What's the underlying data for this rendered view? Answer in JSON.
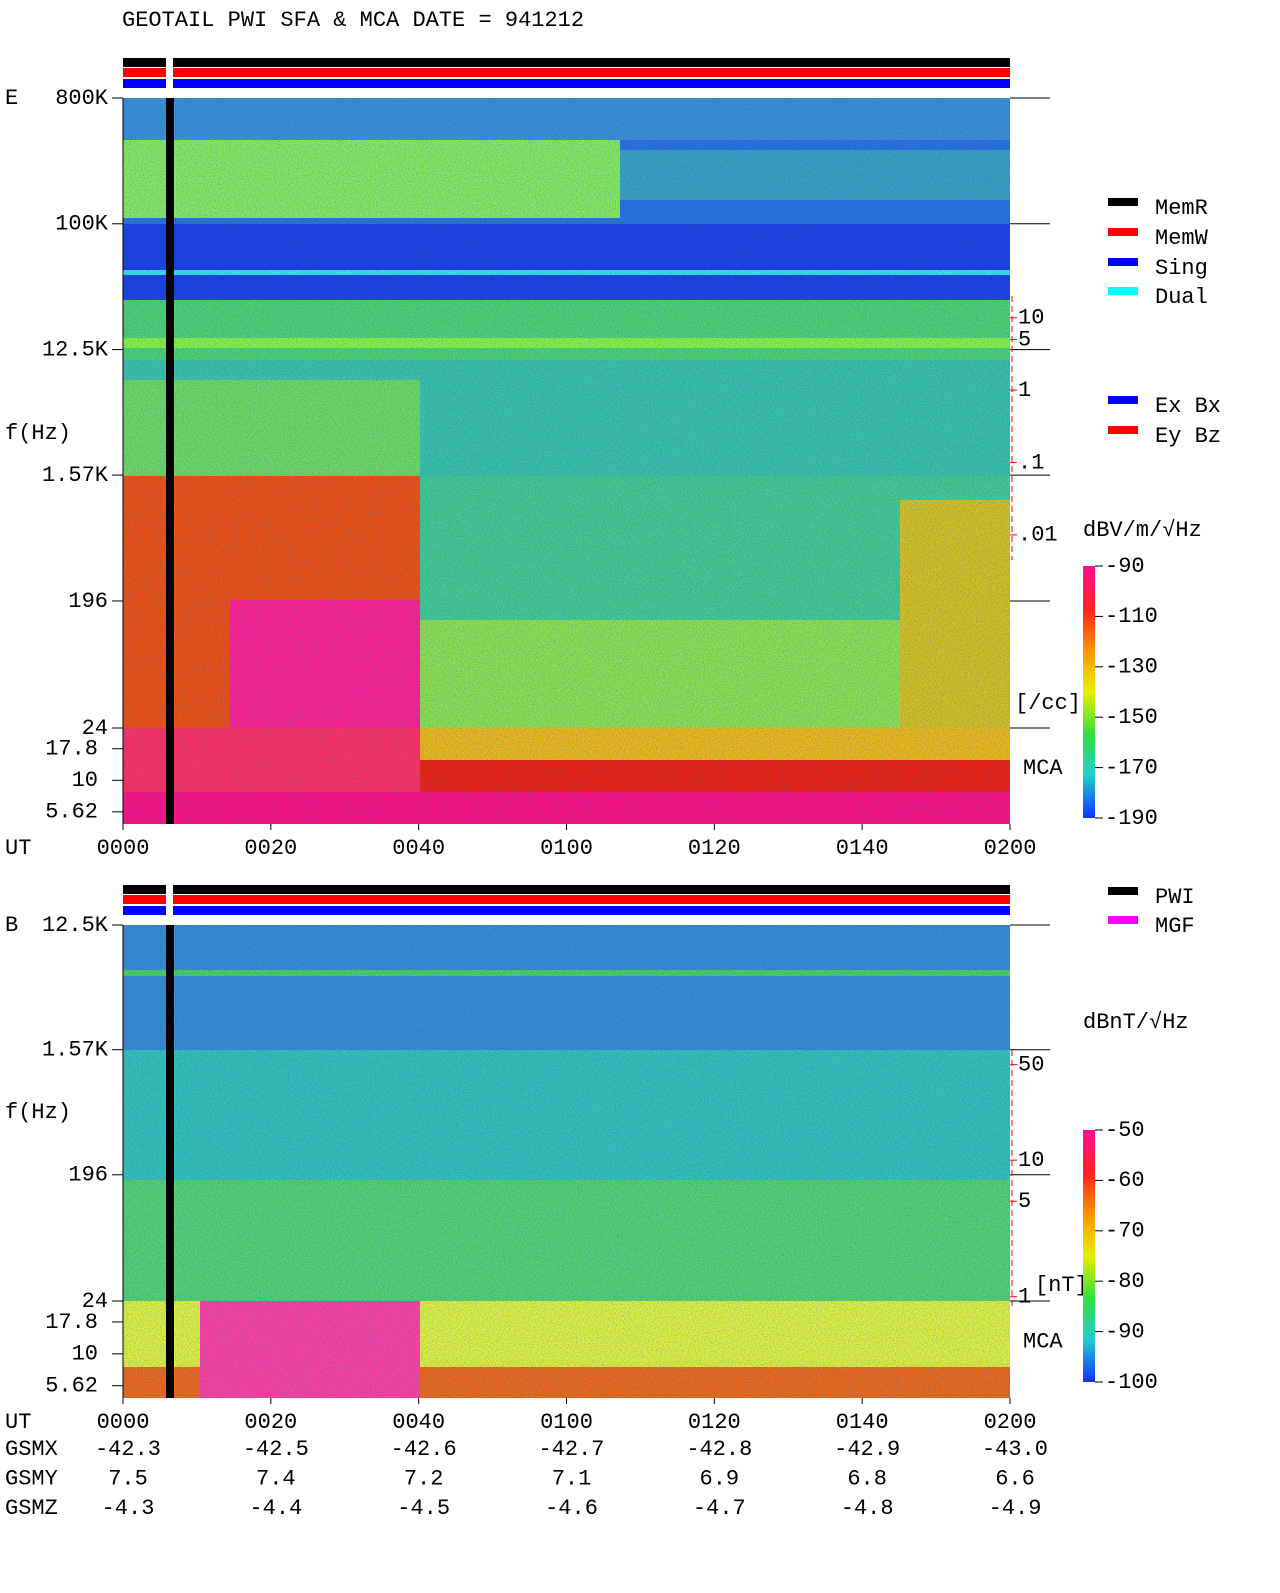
{
  "header": {
    "title": "GEOTAIL  PWI SFA & MCA   DATE = 941212"
  },
  "chart_data": [
    {
      "type": "spectrogram",
      "panel_label": "E",
      "y_label": "f(Hz)",
      "x_label": "UT",
      "log_scale": true,
      "ylim": [
        24,
        800000
      ],
      "yticks": [
        {
          "value": 800000,
          "label": "800K"
        },
        {
          "value": 100000,
          "label": "100K"
        },
        {
          "value": 12500,
          "label": "12.5K"
        },
        {
          "value": 1570,
          "label": "1.57K"
        },
        196,
        24
      ],
      "mca_label": "MCA",
      "mca_ylim": [
        4.5,
        26
      ],
      "mca_yticks": [
        17.8,
        10,
        5.62
      ],
      "xlim": [
        0,
        120
      ],
      "xticks": [
        {
          "value": 0,
          "label": "0000"
        },
        {
          "value": 20,
          "label": "0020"
        },
        {
          "value": 40,
          "label": "0040"
        },
        {
          "value": 60,
          "label": "0100"
        },
        {
          "value": 80,
          "label": "0120"
        },
        {
          "value": 100,
          "label": "0140"
        },
        {
          "value": 120,
          "label": "0200"
        }
      ],
      "density_label": "[/cc]",
      "density_color": "#ff0000",
      "density_ylim": [
        0.0045,
        20
      ],
      "density_ticks": [
        10,
        5,
        1,
        {
          "value": 0.1,
          "label": ".1"
        },
        {
          "value": 0.01,
          "label": ".01"
        }
      ],
      "colorbar": {
        "label": "dBV/m/√Hz",
        "lim": [
          -190,
          -90
        ],
        "ticks": [
          -90,
          -110,
          -130,
          -150,
          -170,
          -190
        ]
      },
      "legends": [
        [
          {
            "name": "MemR",
            "color": "#000000"
          },
          {
            "name": "MemW",
            "color": "#ff0000"
          },
          {
            "name": "Sing",
            "color": "#0000ff"
          },
          {
            "name": "Dual",
            "color": "#00ffff"
          }
        ],
        [
          {
            "name": "Ex Bx",
            "color": "#0000ff"
          },
          {
            "name": "Ey Bz",
            "color": "#ff0000"
          }
        ]
      ]
    },
    {
      "type": "spectrogram",
      "panel_label": "B",
      "y_label": "f(Hz)",
      "x_label": "UT",
      "log_scale": true,
      "ylim": [
        24,
        12500
      ],
      "yticks": [
        {
          "value": 12500,
          "label": "12.5K"
        },
        {
          "value": 1570,
          "label": "1.57K"
        },
        196,
        24
      ],
      "mca_label": "MCA",
      "mca_ylim": [
        4.5,
        26
      ],
      "mca_yticks": [
        17.8,
        10,
        5.62
      ],
      "xlim": [
        0,
        120
      ],
      "xticks": [
        {
          "value": 0,
          "label": "0000"
        },
        {
          "value": 20,
          "label": "0020"
        },
        {
          "value": 40,
          "label": "0040"
        },
        {
          "value": 60,
          "label": "0100"
        },
        {
          "value": 80,
          "label": "0120"
        },
        {
          "value": 100,
          "label": "0140"
        },
        {
          "value": 120,
          "label": "0200"
        }
      ],
      "density_label": "[nT]",
      "density_color": "#ff0000",
      "density_ylim": [
        0.8,
        64
      ],
      "density_ticks": [
        50,
        10,
        5,
        1
      ],
      "colorbar": {
        "label": "dBnT/√Hz",
        "lim": [
          -100,
          -50
        ],
        "ticks": [
          -50,
          -60,
          -70,
          -80,
          -90,
          -100
        ]
      },
      "legends": [
        [
          {
            "name": "PWI",
            "color": "#000000"
          },
          {
            "name": "MGF",
            "color": "#ff00ff"
          }
        ]
      ],
      "orbit_table": {
        "rows": [
          {
            "label": "GSMX",
            "values": [
              "-42.3",
              "-42.5",
              "-42.6",
              "-42.7",
              "-42.8",
              "-42.9",
              "-43.0"
            ]
          },
          {
            "label": "GSMY",
            "values": [
              "7.5",
              "7.4",
              "7.2",
              "7.1",
              "6.9",
              "6.8",
              "6.6"
            ]
          },
          {
            "label": "GSMZ",
            "values": [
              "-4.3",
              "-4.4",
              "-4.5",
              "-4.6",
              "-4.7",
              "-4.8",
              "-4.9"
            ]
          }
        ]
      }
    }
  ]
}
